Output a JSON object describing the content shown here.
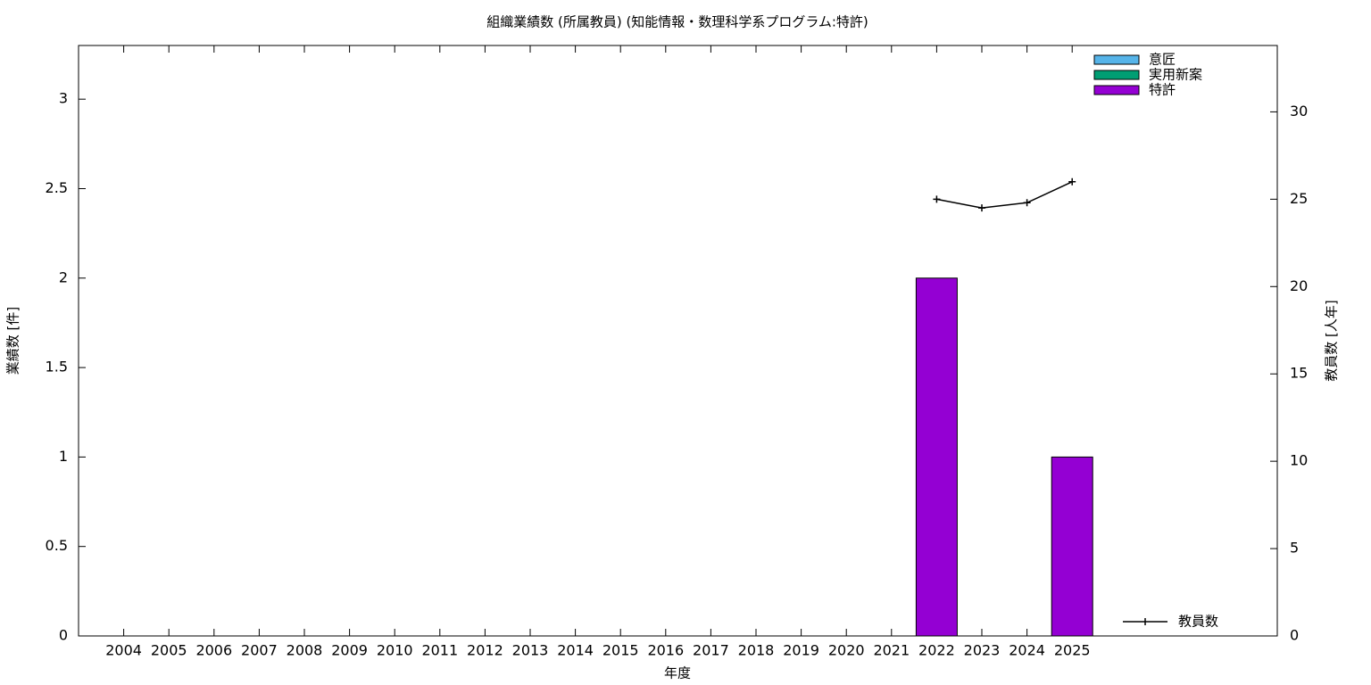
{
  "chart_data": {
    "type": "bar",
    "title": "組織業績数 (所属教員) (知能情報・数理科学系プログラム:特許)",
    "x_label": "年度",
    "y_label": "業績数 [件]",
    "y2_label": "教員数 [人年]",
    "categories": [
      "2004",
      "2005",
      "2006",
      "2007",
      "2008",
      "2009",
      "2010",
      "2011",
      "2012",
      "2013",
      "2014",
      "2015",
      "2016",
      "2017",
      "2018",
      "2019",
      "2020",
      "2021",
      "2022",
      "2023",
      "2024",
      "2025"
    ],
    "stacked": true,
    "series": [
      {
        "name": "意匠",
        "color": "#56b4e9",
        "values": [
          0,
          0,
          0,
          0,
          0,
          0,
          0,
          0,
          0,
          0,
          0,
          0,
          0,
          0,
          0,
          0,
          0,
          0,
          0,
          0,
          0,
          0
        ]
      },
      {
        "name": "実用新案",
        "color": "#009e73",
        "values": [
          0,
          0,
          0,
          0,
          0,
          0,
          0,
          0,
          0,
          0,
          0,
          0,
          0,
          0,
          0,
          0,
          0,
          0,
          0,
          0,
          0,
          0
        ]
      },
      {
        "name": "特許",
        "color": "#9400d3",
        "values": [
          0,
          0,
          0,
          0,
          0,
          0,
          0,
          0,
          0,
          0,
          0,
          0,
          0,
          0,
          0,
          0,
          0,
          0,
          2,
          0,
          0,
          1
        ]
      },
      {
        "name": "教員数",
        "type": "line",
        "axis": "y2",
        "color": "#000000",
        "values": [
          null,
          null,
          null,
          null,
          null,
          null,
          null,
          null,
          null,
          null,
          null,
          null,
          null,
          null,
          null,
          null,
          null,
          null,
          25,
          24.5,
          24.8,
          26
        ]
      }
    ],
    "ylim": [
      0,
      3.3
    ],
    "yticks": [
      0,
      0.5,
      1,
      1.5,
      2,
      2.5,
      3
    ],
    "y2lim": [
      0,
      33.8
    ],
    "y2ticks": [
      0,
      5,
      10,
      15,
      20,
      25,
      30
    ]
  }
}
